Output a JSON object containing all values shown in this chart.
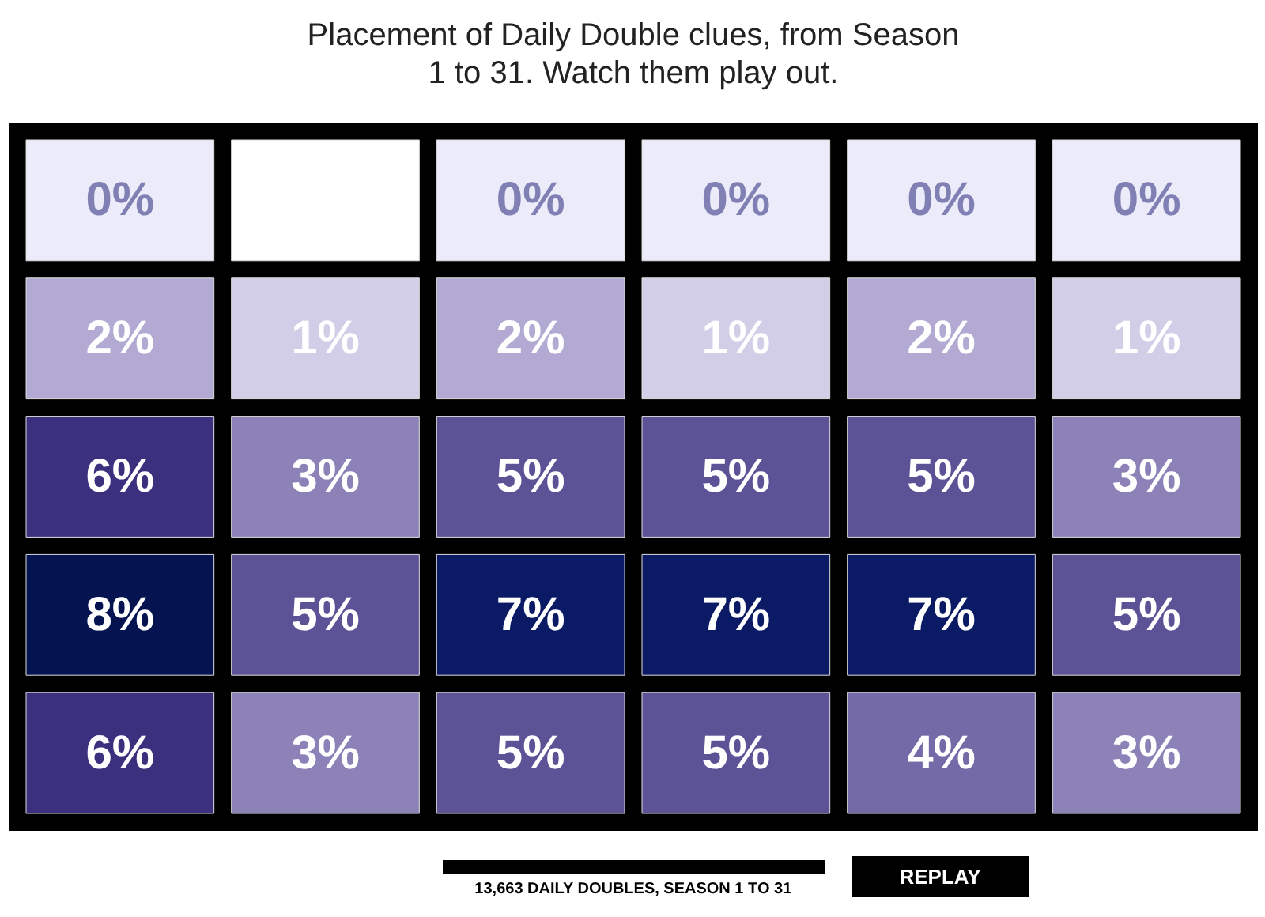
{
  "chart_data": {
    "type": "heatmap",
    "title": "Placement of Daily Double clues, from Season 1 to 31. Watch them play out.",
    "categories": [
      null,
      null,
      null,
      null,
      null,
      null
    ],
    "y_categories": [
      null,
      null,
      null,
      null,
      null
    ],
    "cells": [
      [
        0,
        null,
        0,
        0,
        0,
        0
      ],
      [
        2,
        1,
        2,
        1,
        2,
        1
      ],
      [
        6,
        3,
        5,
        5,
        5,
        3
      ],
      [
        8,
        5,
        7,
        7,
        7,
        5
      ],
      [
        6,
        3,
        5,
        5,
        4,
        3
      ]
    ],
    "cell_labels": [
      [
        "0%",
        null,
        "0%",
        "0%",
        "0%",
        "0%"
      ],
      [
        "2%",
        "1%",
        "2%",
        "1%",
        "2%",
        "1%"
      ],
      [
        "6%",
        "3%",
        "5%",
        "5%",
        "5%",
        "3%"
      ],
      [
        "8%",
        "5%",
        "7%",
        "7%",
        "7%",
        "5%"
      ],
      [
        "6%",
        "3%",
        "5%",
        "5%",
        "4%",
        "3%"
      ]
    ],
    "annotations": [
      "13,663 DAILY DOUBLES, SEASON 1 TO 31",
      "REPLAY"
    ]
  }
}
